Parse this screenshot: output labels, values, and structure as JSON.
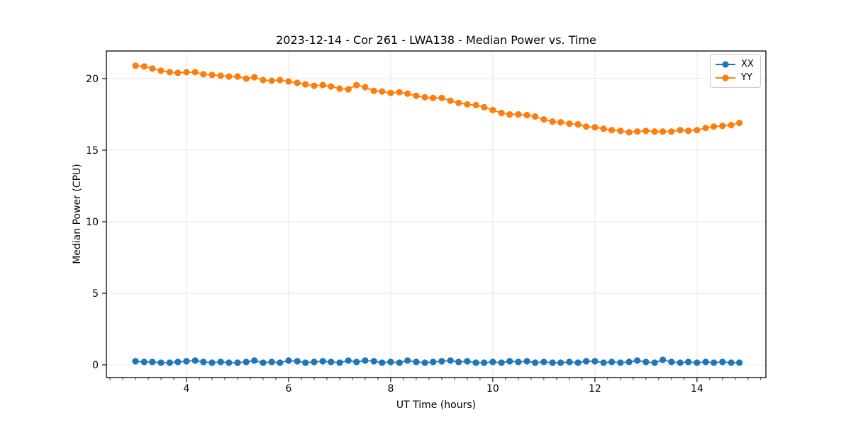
{
  "chart_data": {
    "type": "line",
    "title": "2023-12-14 - Cor 261 - LWA138 - Median Power vs. Time",
    "xlabel": "UT Time (hours)",
    "ylabel": "Median Power (CPU)",
    "xlim": [
      2.43,
      15.35
    ],
    "ylim": [
      -0.89,
      21.93
    ],
    "x_major_ticks": [
      4,
      6,
      8,
      10,
      12,
      14
    ],
    "x_minor_tick_start": 2.5,
    "x_minor_tick_step": 0.25,
    "y_ticks": [
      0,
      5,
      10,
      15,
      20
    ],
    "grid": true,
    "legend_position": "upper right",
    "x": [
      3.0,
      3.17,
      3.33,
      3.5,
      3.67,
      3.83,
      4.0,
      4.17,
      4.33,
      4.5,
      4.67,
      4.83,
      5.0,
      5.17,
      5.33,
      5.5,
      5.67,
      5.83,
      6.0,
      6.17,
      6.33,
      6.5,
      6.67,
      6.83,
      7.0,
      7.17,
      7.33,
      7.5,
      7.67,
      7.83,
      8.0,
      8.17,
      8.33,
      8.5,
      8.67,
      8.83,
      9.0,
      9.17,
      9.33,
      9.5,
      9.67,
      9.83,
      10.0,
      10.17,
      10.33,
      10.5,
      10.67,
      10.83,
      11.0,
      11.17,
      11.33,
      11.5,
      11.67,
      11.83,
      12.0,
      12.17,
      12.33,
      12.5,
      12.67,
      12.83,
      13.0,
      13.17,
      13.33,
      13.5,
      13.67,
      13.83,
      14.0,
      14.17,
      14.33,
      14.5,
      14.67,
      14.83
    ],
    "series": [
      {
        "name": "XX",
        "color": "#1f77b4",
        "values": [
          0.25,
          0.2,
          0.2,
          0.15,
          0.15,
          0.2,
          0.25,
          0.3,
          0.2,
          0.15,
          0.2,
          0.15,
          0.15,
          0.2,
          0.3,
          0.15,
          0.2,
          0.15,
          0.3,
          0.25,
          0.15,
          0.2,
          0.25,
          0.2,
          0.15,
          0.3,
          0.2,
          0.3,
          0.25,
          0.15,
          0.2,
          0.15,
          0.3,
          0.2,
          0.15,
          0.2,
          0.25,
          0.3,
          0.2,
          0.25,
          0.15,
          0.15,
          0.2,
          0.15,
          0.25,
          0.2,
          0.25,
          0.15,
          0.2,
          0.15,
          0.15,
          0.2,
          0.15,
          0.25,
          0.25,
          0.15,
          0.2,
          0.15,
          0.2,
          0.3,
          0.2,
          0.15,
          0.35,
          0.2,
          0.15,
          0.2,
          0.15,
          0.2,
          0.15,
          0.2,
          0.15,
          0.15
        ]
      },
      {
        "name": "YY",
        "color": "#ff7f0e",
        "values": [
          20.9,
          20.85,
          20.7,
          20.55,
          20.45,
          20.4,
          20.45,
          20.45,
          20.3,
          20.25,
          20.2,
          20.15,
          20.15,
          20.0,
          20.1,
          19.9,
          19.85,
          19.9,
          19.8,
          19.7,
          19.6,
          19.5,
          19.55,
          19.45,
          19.3,
          19.25,
          19.55,
          19.4,
          19.15,
          19.1,
          19.0,
          19.05,
          18.95,
          18.8,
          18.7,
          18.65,
          18.65,
          18.45,
          18.3,
          18.2,
          18.15,
          18.0,
          17.8,
          17.6,
          17.5,
          17.5,
          17.45,
          17.35,
          17.15,
          17.0,
          16.95,
          16.85,
          16.8,
          16.65,
          16.6,
          16.5,
          16.4,
          16.35,
          16.25,
          16.3,
          16.35,
          16.3,
          16.3,
          16.3,
          16.4,
          16.35,
          16.4,
          16.55,
          16.65,
          16.7,
          16.75,
          16.9
        ]
      }
    ]
  }
}
